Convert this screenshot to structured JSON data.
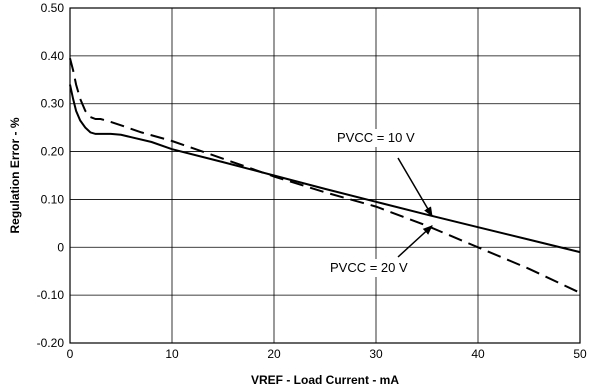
{
  "chart_data": {
    "type": "line",
    "title": "",
    "xlabel": "VREF - Load Current - mA",
    "ylabel": "Regulation Error - %",
    "xlim": [
      0,
      50
    ],
    "ylim": [
      -0.2,
      0.5
    ],
    "x_ticks": [
      0,
      10,
      20,
      30,
      40,
      50
    ],
    "x_tick_labels": [
      "0",
      "10",
      "20",
      "30",
      "40",
      "50"
    ],
    "y_ticks": [
      0.5,
      0.4,
      0.3,
      0.2,
      0.1,
      0,
      -0.1,
      -0.2
    ],
    "y_tick_labels": [
      "0.50",
      "0.40",
      "0.30",
      "0.20",
      "0.10",
      "0",
      "-0.10",
      "-0.20"
    ],
    "grid": true,
    "series": [
      {
        "name": "PVCC = 10 V",
        "style": "solid",
        "color": "#000000",
        "x": [
          0,
          0.3,
          0.6,
          1.0,
          1.5,
          2.0,
          2.5,
          3,
          4,
          5,
          6,
          8,
          10,
          15,
          20,
          25,
          30,
          35,
          40,
          45,
          50
        ],
        "y": [
          0.34,
          0.31,
          0.285,
          0.265,
          0.25,
          0.24,
          0.237,
          0.237,
          0.237,
          0.235,
          0.23,
          0.22,
          0.205,
          0.178,
          0.15,
          0.122,
          0.095,
          0.068,
          0.042,
          0.016,
          -0.01
        ]
      },
      {
        "name": "PVCC = 20 V",
        "style": "dashed",
        "color": "#000000",
        "x": [
          0,
          0.3,
          0.6,
          1.0,
          1.5,
          2.0,
          2.5,
          3,
          4,
          5,
          7,
          10,
          15,
          20,
          25,
          30,
          35,
          40,
          45,
          50
        ],
        "y": [
          0.395,
          0.37,
          0.34,
          0.31,
          0.285,
          0.272,
          0.268,
          0.268,
          0.262,
          0.255,
          0.24,
          0.222,
          0.185,
          0.148,
          0.115,
          0.085,
          0.045,
          0.0,
          -0.045,
          -0.095
        ]
      }
    ],
    "annotations": [
      {
        "text": "PVCC = 10 V",
        "target_series": "PVCC = 10 V",
        "arrow_to": [
          35.5,
          0.065
        ]
      },
      {
        "text": "PVCC = 20 V",
        "target_series": "PVCC = 20 V",
        "arrow_to": [
          35.5,
          0.045
        ]
      }
    ]
  }
}
